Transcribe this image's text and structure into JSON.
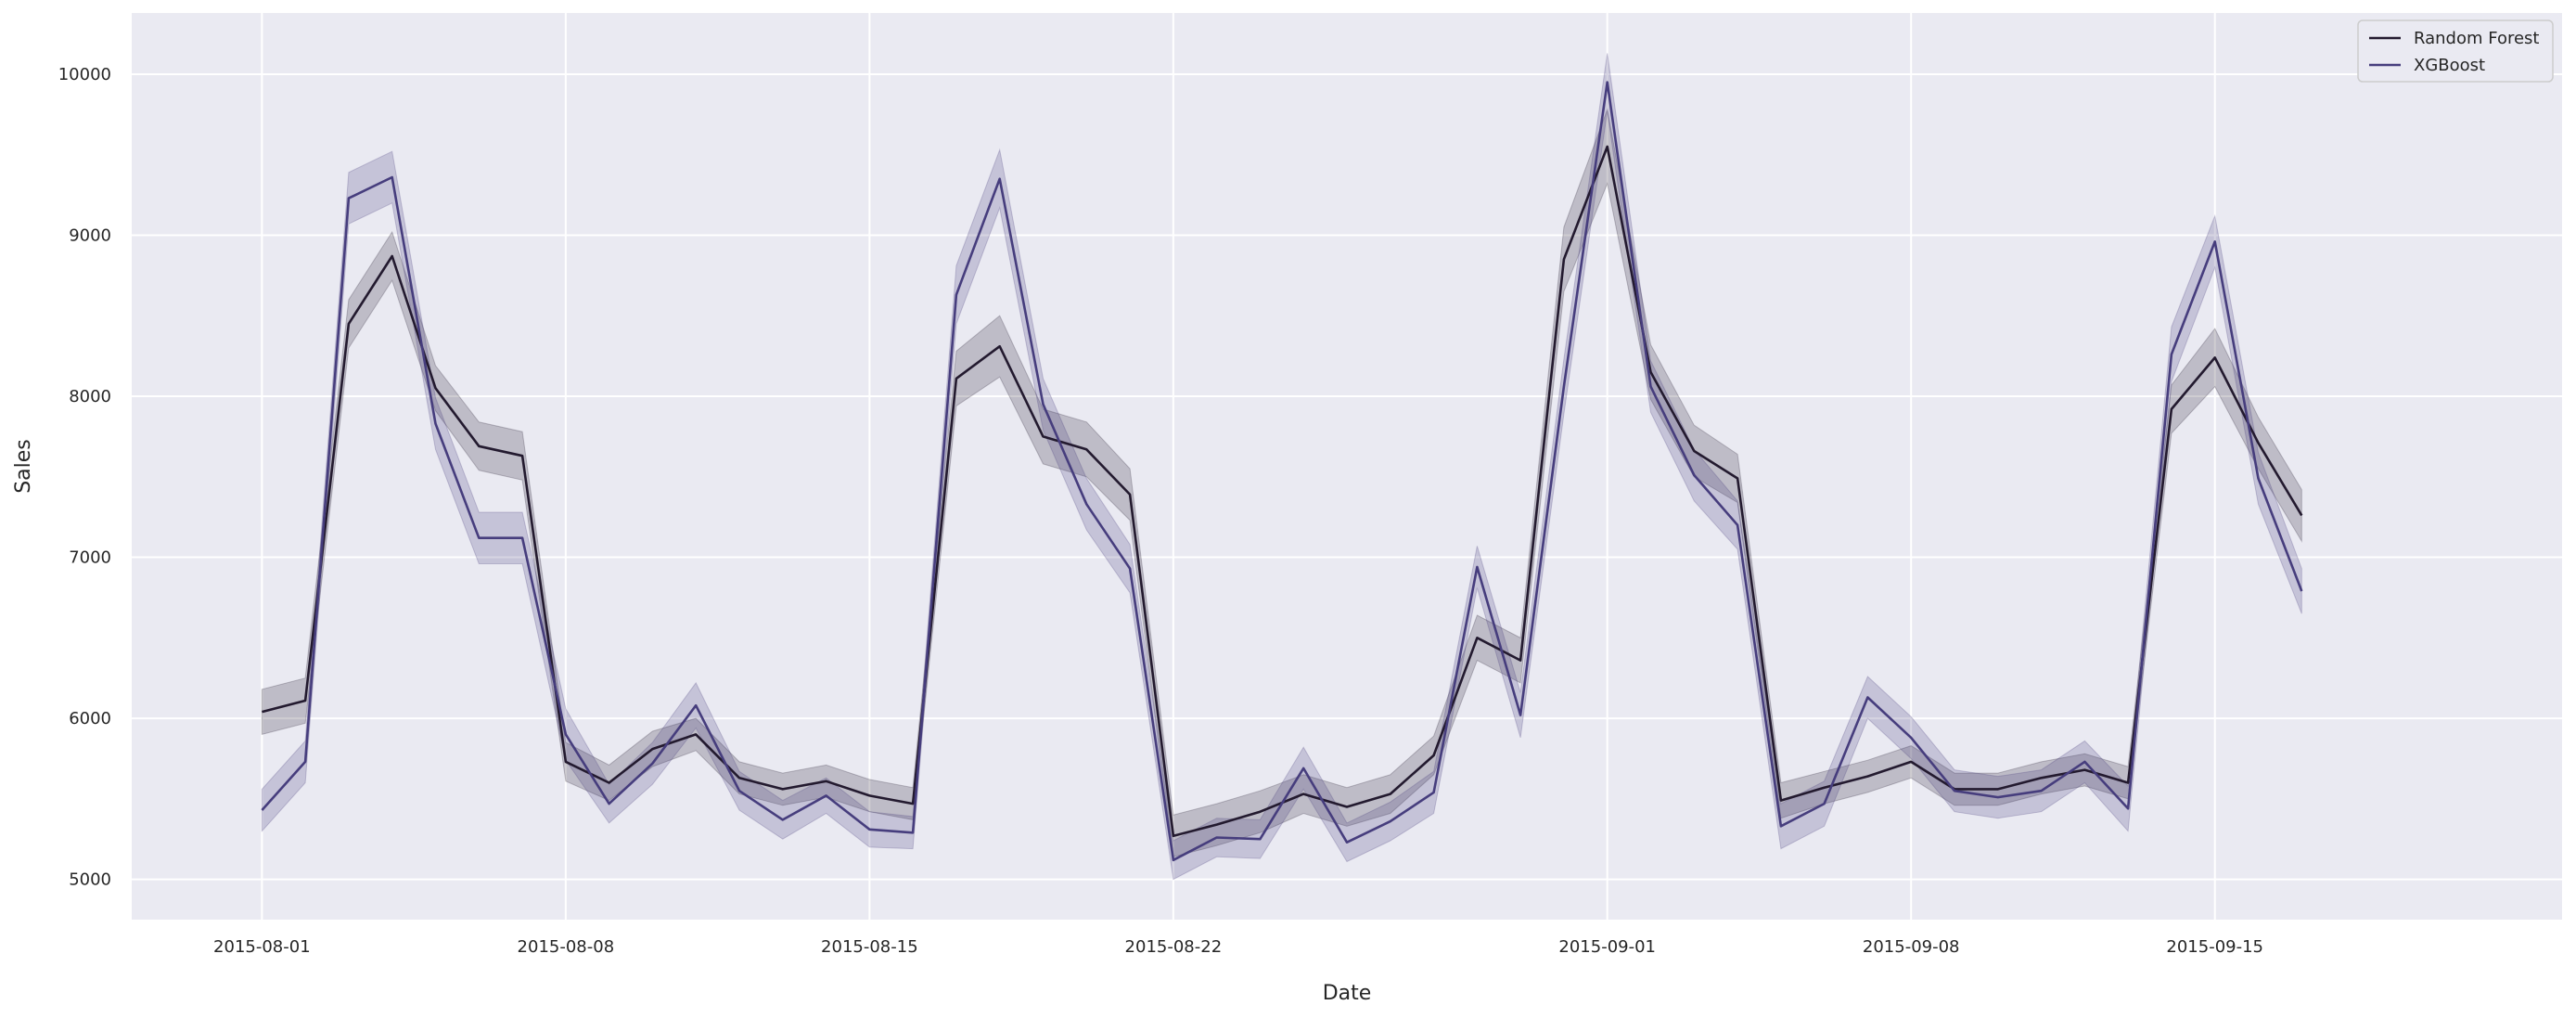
{
  "chart_data": {
    "type": "line",
    "title": "",
    "xlabel": "Date",
    "ylabel": "Sales",
    "x_type": "date",
    "xlim": [
      "2015-07-29",
      "2015-09-23"
    ],
    "ylim": [
      4750,
      10380
    ],
    "x_ticks": [
      "2015-08-01",
      "2015-08-08",
      "2015-08-15",
      "2015-08-22",
      "2015-09-01",
      "2015-09-08",
      "2015-09-15"
    ],
    "y_ticks": [
      5000,
      6000,
      7000,
      8000,
      9000,
      10000
    ],
    "grid": true,
    "legend_position": "top-right",
    "x": [
      "2015-08-01",
      "2015-08-02",
      "2015-08-03",
      "2015-08-04",
      "2015-08-05",
      "2015-08-06",
      "2015-08-07",
      "2015-08-08",
      "2015-08-09",
      "2015-08-10",
      "2015-08-11",
      "2015-08-12",
      "2015-08-13",
      "2015-08-14",
      "2015-08-15",
      "2015-08-16",
      "2015-08-17",
      "2015-08-18",
      "2015-08-19",
      "2015-08-20",
      "2015-08-21",
      "2015-08-22",
      "2015-08-23",
      "2015-08-24",
      "2015-08-25",
      "2015-08-26",
      "2015-08-27",
      "2015-08-28",
      "2015-08-29",
      "2015-08-30",
      "2015-08-31",
      "2015-09-01",
      "2015-09-02",
      "2015-09-03",
      "2015-09-04",
      "2015-09-05",
      "2015-09-06",
      "2015-09-07",
      "2015-09-08",
      "2015-09-09",
      "2015-09-10",
      "2015-09-11",
      "2015-09-12",
      "2015-09-13",
      "2015-09-14",
      "2015-09-15",
      "2015-09-16",
      "2015-09-17"
    ],
    "series": [
      {
        "name": "Random Forest",
        "color": "#231a2f",
        "values": [
          6040,
          6110,
          8450,
          8870,
          8050,
          7690,
          7630,
          5730,
          5600,
          5810,
          5900,
          5630,
          5560,
          5610,
          5520,
          5470,
          8110,
          8310,
          7750,
          7670,
          7390,
          5270,
          5340,
          5420,
          5530,
          5450,
          5530,
          5770,
          6500,
          6360,
          8850,
          9550,
          8150,
          7660,
          7490,
          5490,
          5570,
          5640,
          5730,
          5560,
          5560,
          5630,
          5680,
          5600,
          7920,
          8240,
          7710,
          7260
        ],
        "ci_half_width": [
          140,
          140,
          150,
          150,
          140,
          150,
          150,
          120,
          110,
          110,
          100,
          100,
          100,
          100,
          100,
          100,
          170,
          190,
          170,
          170,
          160,
          130,
          130,
          130,
          120,
          120,
          120,
          120,
          140,
          140,
          200,
          230,
          170,
          160,
          150,
          110,
          100,
          100,
          100,
          100,
          100,
          100,
          100,
          100,
          150,
          180,
          160,
          160
        ]
      },
      {
        "name": "XGBoost",
        "color": "#463d7d",
        "values": [
          5430,
          5730,
          9230,
          9360,
          7830,
          7120,
          7120,
          5900,
          5470,
          5720,
          6080,
          5550,
          5370,
          5520,
          5310,
          5290,
          8630,
          9350,
          7950,
          7330,
          6930,
          5120,
          5260,
          5250,
          5690,
          5230,
          5360,
          5540,
          6940,
          6020,
          8060,
          9950,
          8060,
          7510,
          7200,
          5330,
          5470,
          6130,
          5880,
          5550,
          5510,
          5550,
          5730,
          5440,
          8260,
          8960,
          7490,
          6790
        ],
        "ci_half_width": [
          130,
          130,
          160,
          160,
          160,
          160,
          160,
          160,
          120,
          130,
          140,
          120,
          120,
          110,
          110,
          100,
          180,
          180,
          160,
          160,
          150,
          120,
          120,
          120,
          130,
          120,
          120,
          130,
          130,
          140,
          170,
          180,
          160,
          160,
          150,
          140,
          140,
          130,
          130,
          130,
          130,
          130,
          130,
          140,
          170,
          160,
          160,
          140
        ]
      }
    ]
  }
}
